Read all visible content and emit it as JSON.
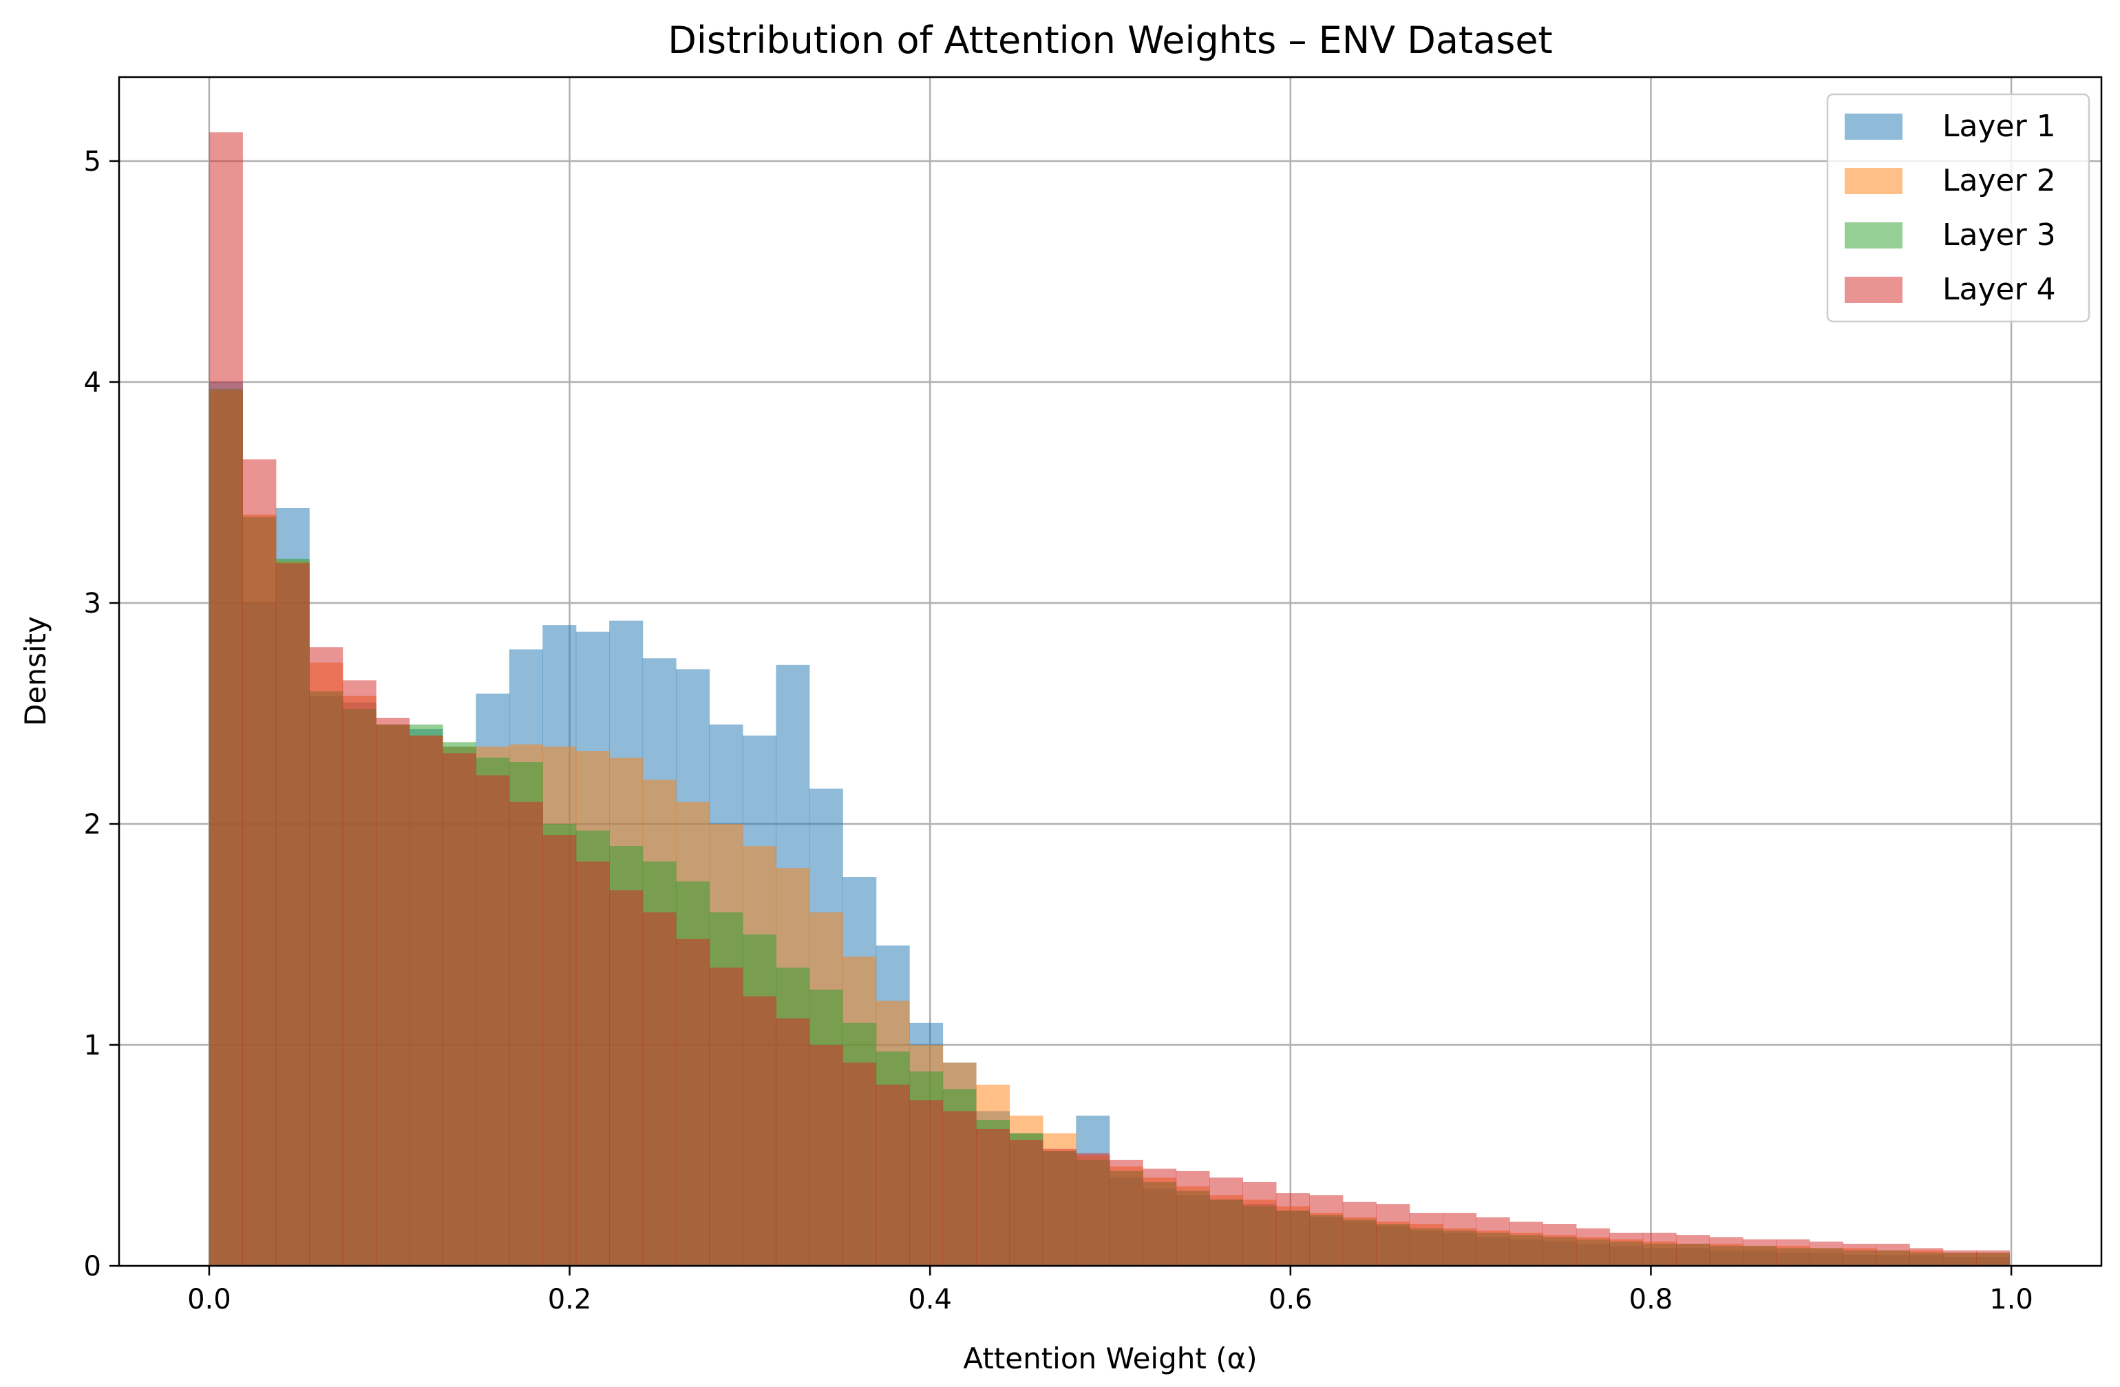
{
  "chart_data": {
    "type": "histogram",
    "title": "Distribution of Attention Weights – ENV Dataset",
    "xlabel": "Attention Weight (α)",
    "ylabel": "Density",
    "xlim": [
      -0.05,
      1.05
    ],
    "ylim": [
      0,
      5.38
    ],
    "xticks": [
      "0.0",
      "0.2",
      "0.4",
      "0.6",
      "0.8",
      "1.0"
    ],
    "yticks": [
      "0",
      "1",
      "2",
      "3",
      "4",
      "5"
    ],
    "grid": true,
    "legend_position": "top-right",
    "bin_edges": [
      0.0,
      0.0185,
      0.037,
      0.0555,
      0.074,
      0.0925,
      0.111,
      0.1295,
      0.148,
      0.1665,
      0.185,
      0.2035,
      0.222,
      0.2405,
      0.259,
      0.2775,
      0.296,
      0.3145,
      0.333,
      0.3515,
      0.37,
      0.3885,
      0.407,
      0.4255,
      0.444,
      0.4625,
      0.481,
      0.4995,
      0.518,
      0.5365,
      0.555,
      0.5735,
      0.592,
      0.6105,
      0.629,
      0.6475,
      0.666,
      0.6845,
      0.703,
      0.7215,
      0.74,
      0.7585,
      0.777,
      0.7955,
      0.814,
      0.8325,
      0.851,
      0.8695,
      0.888,
      0.9065,
      0.925,
      0.9435,
      0.962,
      0.9805,
      0.999
    ],
    "series": [
      {
        "name": "Layer 1",
        "color": "#1f77b4",
        "alpha": 0.5,
        "values": [
          4.0,
          3.0,
          3.43,
          2.58,
          2.55,
          2.45,
          2.43,
          2.35,
          2.59,
          2.79,
          2.9,
          2.87,
          2.92,
          2.75,
          2.7,
          2.45,
          2.4,
          2.72,
          2.16,
          1.76,
          1.45,
          1.1,
          0.92,
          0.7,
          0.6,
          0.52,
          0.68,
          0.4,
          0.35,
          0.32,
          0.3,
          0.28,
          0.25,
          0.22,
          0.2,
          0.18,
          0.16,
          0.15,
          0.13,
          0.12,
          0.11,
          0.1,
          0.09,
          0.08,
          0.08,
          0.07,
          0.07,
          0.06,
          0.06,
          0.05,
          0.05,
          0.05,
          0.04,
          0.04
        ]
      },
      {
        "name": "Layer 2",
        "color": "#ff7f0e",
        "alpha": 0.5,
        "values": [
          3.96,
          3.4,
          3.19,
          2.73,
          2.58,
          2.45,
          2.4,
          2.35,
          2.35,
          2.36,
          2.35,
          2.33,
          2.3,
          2.2,
          2.1,
          2.0,
          1.9,
          1.8,
          1.6,
          1.4,
          1.2,
          1.0,
          0.92,
          0.82,
          0.68,
          0.6,
          0.5,
          0.45,
          0.4,
          0.36,
          0.32,
          0.3,
          0.27,
          0.24,
          0.22,
          0.2,
          0.19,
          0.17,
          0.16,
          0.15,
          0.14,
          0.13,
          0.12,
          0.11,
          0.1,
          0.1,
          0.09,
          0.09,
          0.08,
          0.08,
          0.07,
          0.07,
          0.06,
          0.06
        ]
      },
      {
        "name": "Layer 3",
        "color": "#2ca02c",
        "alpha": 0.5,
        "values": [
          3.97,
          3.39,
          3.2,
          2.6,
          2.52,
          2.45,
          2.45,
          2.37,
          2.3,
          2.28,
          2.0,
          1.97,
          1.9,
          1.83,
          1.74,
          1.6,
          1.5,
          1.35,
          1.25,
          1.1,
          0.97,
          0.88,
          0.8,
          0.66,
          0.6,
          0.52,
          0.48,
          0.43,
          0.38,
          0.34,
          0.3,
          0.27,
          0.25,
          0.23,
          0.21,
          0.19,
          0.17,
          0.16,
          0.15,
          0.14,
          0.13,
          0.12,
          0.11,
          0.1,
          0.1,
          0.09,
          0.09,
          0.08,
          0.08,
          0.07,
          0.07,
          0.06,
          0.06,
          0.06
        ]
      },
      {
        "name": "Layer 4",
        "color": "#d62728",
        "alpha": 0.5,
        "values": [
          5.13,
          3.65,
          3.18,
          2.8,
          2.65,
          2.48,
          2.4,
          2.32,
          2.22,
          2.1,
          1.95,
          1.83,
          1.7,
          1.6,
          1.48,
          1.35,
          1.22,
          1.12,
          1.0,
          0.92,
          0.82,
          0.75,
          0.7,
          0.62,
          0.57,
          0.53,
          0.51,
          0.48,
          0.44,
          0.43,
          0.4,
          0.38,
          0.33,
          0.32,
          0.29,
          0.28,
          0.24,
          0.24,
          0.22,
          0.2,
          0.19,
          0.17,
          0.15,
          0.15,
          0.14,
          0.13,
          0.12,
          0.12,
          0.11,
          0.1,
          0.1,
          0.08,
          0.07,
          0.07
        ]
      }
    ]
  }
}
